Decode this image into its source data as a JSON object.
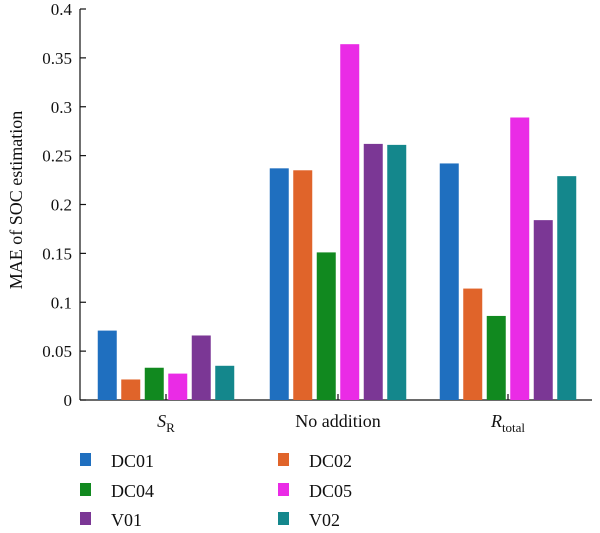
{
  "chart_data": {
    "type": "bar",
    "categories": [
      {
        "main": "S",
        "sub": "R"
      },
      {
        "main": "No addition",
        "sub": ""
      },
      {
        "main": "R",
        "sub": "total"
      }
    ],
    "ylabel": "MAE of SOC estimation",
    "xlabel": "",
    "title": "",
    "ylim": [
      0,
      0.4
    ],
    "yticks": [
      "0",
      "0.05",
      "0.1",
      "0.15",
      "0.2",
      "0.25",
      "0.3",
      "0.35",
      "0.4"
    ],
    "ytick_values": [
      0,
      0.05,
      0.1,
      0.15,
      0.2,
      0.25,
      0.3,
      0.35,
      0.4
    ],
    "grid": false,
    "legend_position": "bottom",
    "series": [
      {
        "name": "DC01",
        "color": "#1f6fbf",
        "values": [
          0.071,
          0.237,
          0.242
        ]
      },
      {
        "name": "DC02",
        "color": "#e0642a",
        "values": [
          0.021,
          0.235,
          0.114
        ]
      },
      {
        "name": "DC04",
        "color": "#11891f",
        "values": [
          0.033,
          0.151,
          0.086
        ]
      },
      {
        "name": "DC05",
        "color": "#ea2be6",
        "values": [
          0.027,
          0.364,
          0.289
        ]
      },
      {
        "name": "V01",
        "color": "#7b3795",
        "values": [
          0.066,
          0.262,
          0.184
        ]
      },
      {
        "name": "V02",
        "color": "#14878c",
        "values": [
          0.035,
          0.261,
          0.229
        ]
      }
    ]
  }
}
